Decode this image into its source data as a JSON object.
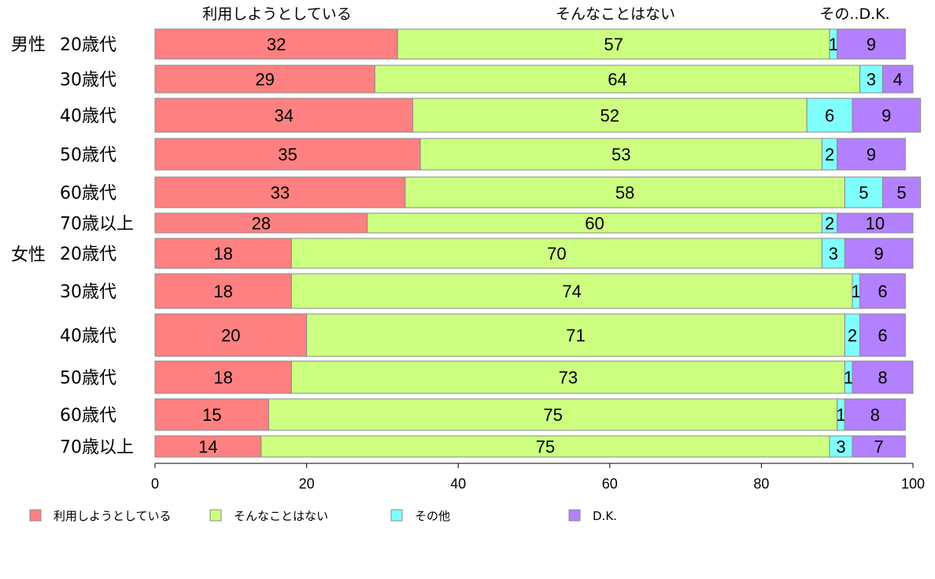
{
  "chart_data": {
    "type": "bar",
    "orientation": "horizontal",
    "stacked": true,
    "header_labels": [
      "利用しようとしている",
      "そんなことはない",
      "その..D.K."
    ],
    "groups": [
      "男性",
      "女性"
    ],
    "categories": [
      "20歳代",
      "30歳代",
      "40歳代",
      "50歳代",
      "60歳代",
      "70歳以上",
      "20歳代",
      "30歳代",
      "40歳代",
      "50歳代",
      "60歳代",
      "70歳以上"
    ],
    "category_group": [
      0,
      0,
      0,
      0,
      0,
      0,
      1,
      1,
      1,
      1,
      1,
      1
    ],
    "series": [
      {
        "name": "利用しようとしている",
        "color": "#ff8080",
        "values": [
          32,
          29,
          34,
          35,
          33,
          28,
          18,
          18,
          20,
          18,
          15,
          14
        ]
      },
      {
        "name": "そんなことはない",
        "color": "#ccff80",
        "values": [
          57,
          64,
          52,
          53,
          58,
          60,
          70,
          74,
          71,
          73,
          75,
          75
        ]
      },
      {
        "name": "その他",
        "color": "#80ffff",
        "values": [
          1,
          3,
          6,
          2,
          5,
          2,
          3,
          1,
          2,
          1,
          1,
          3
        ]
      },
      {
        "name": "D.K.",
        "color": "#b380ff",
        "values": [
          9,
          4,
          9,
          9,
          5,
          10,
          9,
          6,
          6,
          8,
          8,
          7
        ]
      }
    ],
    "xlim": [
      0,
      100
    ],
    "xticks": [
      0,
      20,
      40,
      60,
      80,
      100
    ],
    "legend_position": "bottom",
    "grid": false
  }
}
